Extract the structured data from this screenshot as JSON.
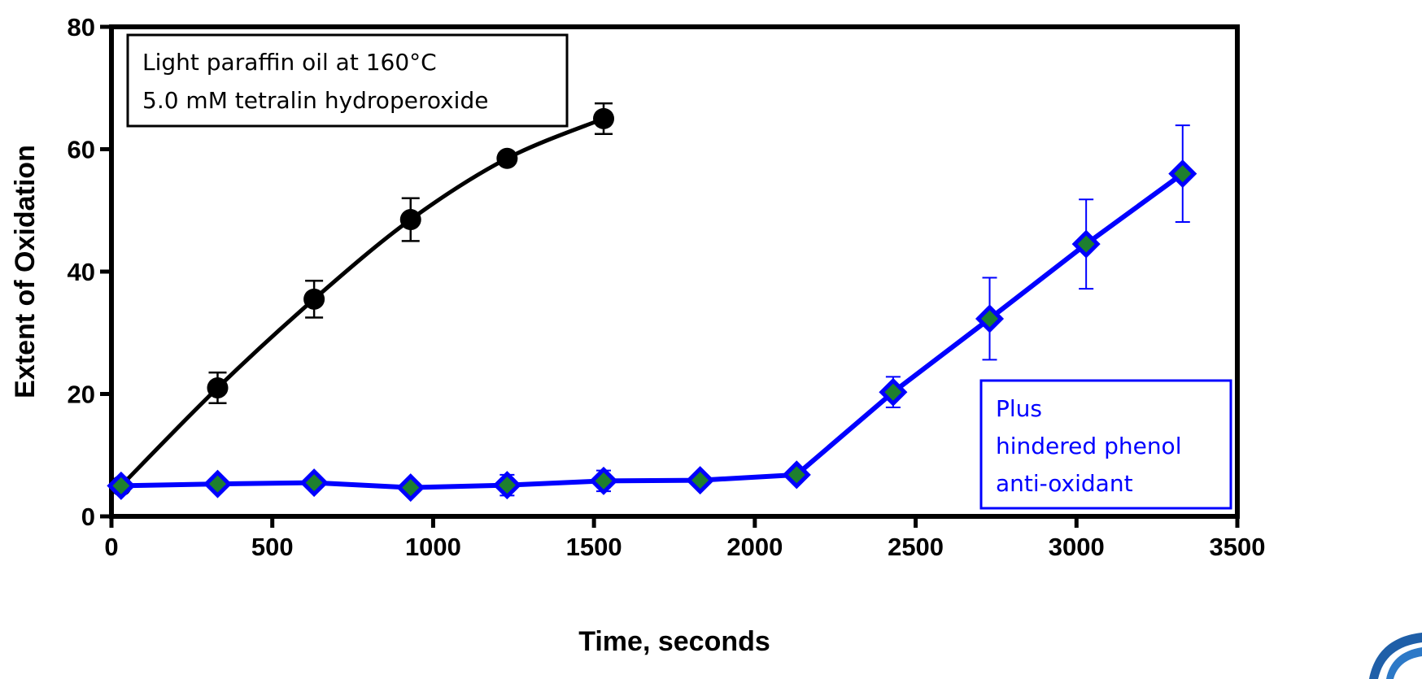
{
  "chart_data": {
    "type": "line",
    "xlabel": "Time, seconds",
    "ylabel": "Extent of Oxidation",
    "xlim": [
      0,
      3500
    ],
    "ylim": [
      0,
      80
    ],
    "x_ticks": [
      "0",
      "500",
      "1000",
      "1500",
      "2000",
      "2500",
      "3000",
      "3500"
    ],
    "y_ticks": [
      "0",
      "20",
      "40",
      "60",
      "80"
    ],
    "grid": false,
    "series": [
      {
        "marker": "circle",
        "color": "#000000",
        "x": [
          30,
          330,
          630,
          930,
          1230,
          1530
        ],
        "y": [
          5,
          21,
          35.5,
          48.5,
          58.5,
          65
        ],
        "error": [
          0,
          2.5,
          3,
          3.5,
          0.8,
          2.5
        ]
      },
      {
        "marker": "diamond",
        "color": "#0000ff",
        "marker_fill": "#1e7f2f",
        "x": [
          30,
          330,
          630,
          930,
          1230,
          1530,
          1830,
          2130,
          2430,
          2730,
          3030,
          3330
        ],
        "y": [
          5,
          5.3,
          5.5,
          4.7,
          5.1,
          5.8,
          5.9,
          6.8,
          20.3,
          32.3,
          44.5,
          56
        ],
        "error": [
          0,
          0,
          0,
          0,
          1.7,
          1.7,
          0,
          0,
          2.5,
          6.7,
          7.3,
          7.9
        ]
      }
    ],
    "annotations": [
      {
        "lines": [
          "Light paraffin oil at 160°C",
          "5.0 mM tetralin hydroperoxide"
        ],
        "color": "#000000",
        "position": "top-left"
      },
      {
        "lines": [
          "Plus",
          "hindered phenol",
          "anti-oxidant"
        ],
        "color": "#0000ff",
        "position": "bottom-right"
      }
    ]
  }
}
